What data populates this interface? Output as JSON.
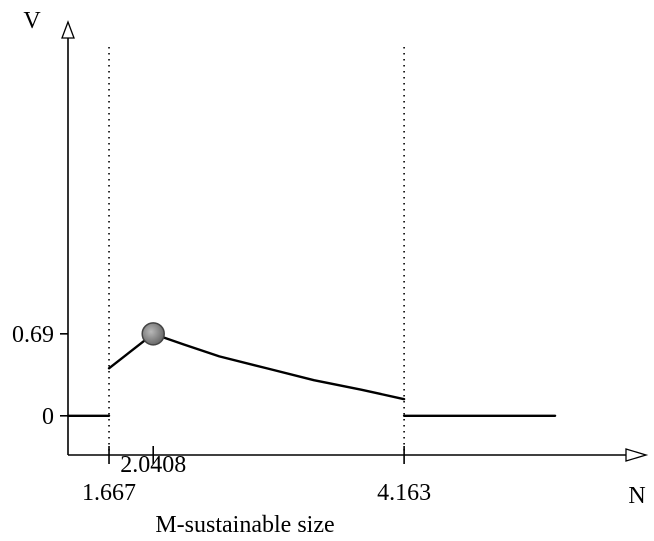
{
  "chart_data": {
    "type": "line",
    "xlabel": "M-sustainable size",
    "axis_x_label": "N",
    "axis_y_label": "V",
    "x_ticks": [
      {
        "value": 1.667,
        "label": "1.667"
      },
      {
        "value": 2.0408,
        "label": "2.0408"
      },
      {
        "value": 4.163,
        "label": "4.163"
      }
    ],
    "y_ticks": [
      {
        "value": 0,
        "label": "0"
      },
      {
        "value": 0.69,
        "label": "0.69"
      }
    ],
    "xlim": [
      1.32,
      6.04
    ],
    "ylim": [
      -0.33,
      3.18
    ],
    "vertical_guides": [
      1.667,
      4.163
    ],
    "series": [
      {
        "segment": "left",
        "x": [
          1.32,
          1.667
        ],
        "y": [
          0,
          0
        ]
      },
      {
        "segment": "middle",
        "x": [
          1.667,
          2.0408,
          2.3,
          2.6,
          3.0,
          3.4,
          3.8,
          4.163
        ],
        "y": [
          0.4,
          0.69,
          0.6,
          0.5,
          0.4,
          0.3,
          0.22,
          0.14
        ]
      },
      {
        "segment": "right",
        "x": [
          4.163,
          5.44
        ],
        "y": [
          0,
          0
        ]
      }
    ],
    "highlight": {
      "x": 2.0408,
      "y": 0.69
    },
    "grid": false,
    "legend": "none"
  }
}
